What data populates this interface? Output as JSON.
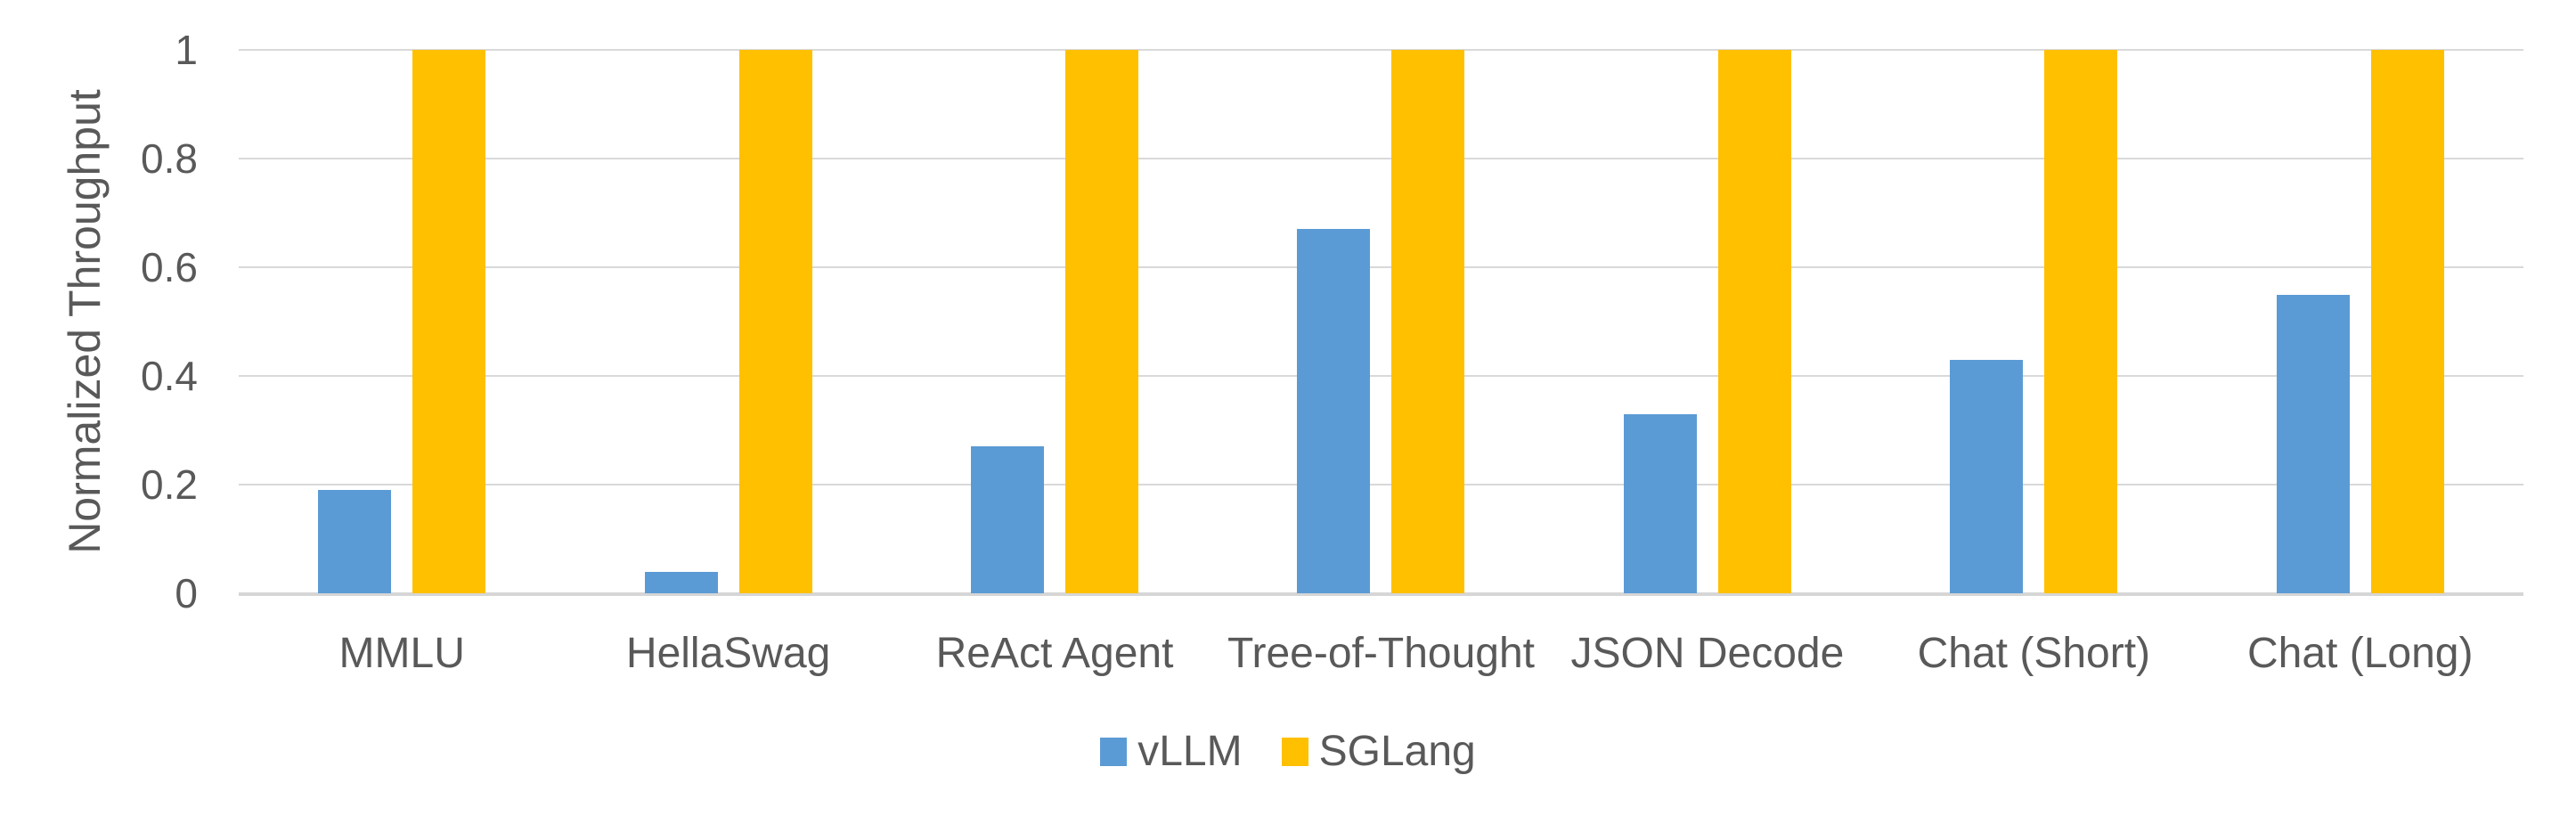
{
  "chart_data": {
    "type": "bar",
    "title": "",
    "xlabel": "",
    "ylabel": "Normalized Throughput",
    "categories": [
      "MMLU",
      "HellaSwag",
      "ReAct Agent",
      "Tree-of-Thought",
      "JSON Decode",
      "Chat (Short)",
      "Chat (Long)"
    ],
    "series": [
      {
        "name": "vLLM",
        "color": "#5B9BD5",
        "values": [
          0.19,
          0.04,
          0.27,
          0.67,
          0.33,
          0.43,
          0.55
        ]
      },
      {
        "name": "SGLang",
        "color": "#FFC000",
        "values": [
          1,
          1,
          1,
          1,
          1,
          1,
          1
        ]
      }
    ],
    "ylim": [
      0,
      1
    ],
    "y_ticks": [
      0,
      0.2,
      0.4,
      0.6,
      0.8,
      1
    ],
    "y_tick_labels": [
      "0",
      "0.2",
      "0.4",
      "0.6",
      "0.8",
      "1"
    ],
    "grid": "horizontal",
    "legend_position": "bottom"
  },
  "colors": {
    "background": "#FFFFFF",
    "text": "#595959",
    "gridline": "#D9D9D9",
    "axis_line": "#D6D6D6"
  }
}
